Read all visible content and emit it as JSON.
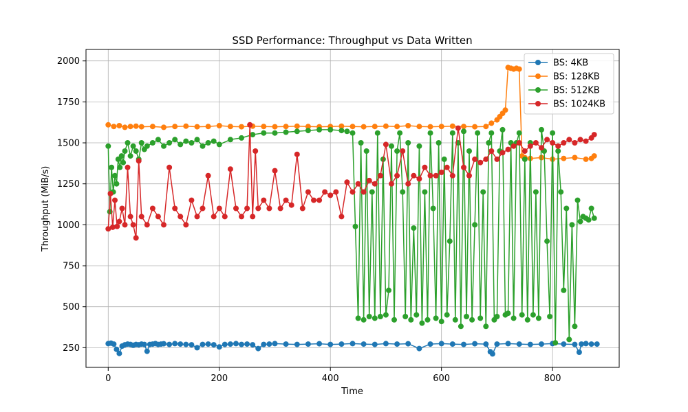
{
  "chart_data": {
    "type": "line",
    "title": "SSD Performance: Throughput vs Data Written",
    "xlabel": "Time",
    "ylabel": "Throughput (MiB/s)",
    "xlim": [
      -40,
      920
    ],
    "ylim": [
      130,
      2070
    ],
    "xticks": [
      0,
      200,
      400,
      600,
      800
    ],
    "yticks": [
      250,
      500,
      750,
      1000,
      1250,
      1500,
      1750,
      2000
    ],
    "grid": true,
    "legend_position": "upper-right",
    "marker": "circle",
    "series": [
      {
        "name": "BS: 4KB",
        "color": "#1f77b4",
        "x": [
          0,
          5,
          10,
          15,
          20,
          25,
          30,
          35,
          40,
          45,
          50,
          55,
          60,
          65,
          70,
          75,
          80,
          85,
          90,
          95,
          100,
          110,
          120,
          130,
          140,
          150,
          160,
          170,
          180,
          190,
          200,
          210,
          220,
          230,
          240,
          250,
          260,
          270,
          280,
          290,
          300,
          320,
          340,
          360,
          380,
          400,
          420,
          440,
          460,
          480,
          500,
          520,
          540,
          560,
          580,
          600,
          620,
          640,
          660,
          680,
          688,
          692,
          700,
          720,
          740,
          760,
          780,
          800,
          820,
          840,
          848,
          852,
          860,
          870,
          880
        ],
        "y": [
          275,
          278,
          272,
          240,
          215,
          260,
          268,
          272,
          270,
          265,
          270,
          268,
          272,
          270,
          228,
          270,
          272,
          275,
          270,
          272,
          274,
          270,
          275,
          272,
          270,
          268,
          250,
          270,
          272,
          268,
          255,
          270,
          272,
          275,
          270,
          272,
          268,
          245,
          270,
          272,
          275,
          272,
          270,
          272,
          274,
          270,
          272,
          275,
          272,
          270,
          275,
          272,
          274,
          245,
          272,
          275,
          272,
          270,
          274,
          272,
          225,
          212,
          272,
          275,
          272,
          270,
          272,
          275,
          272,
          270,
          222,
          272,
          275,
          272,
          272
        ]
      },
      {
        "name": "BS: 128KB",
        "color": "#ff7f0e",
        "x": [
          0,
          10,
          20,
          30,
          40,
          50,
          60,
          80,
          100,
          120,
          140,
          160,
          180,
          200,
          220,
          240,
          260,
          280,
          300,
          320,
          340,
          360,
          380,
          400,
          420,
          440,
          460,
          480,
          500,
          520,
          540,
          560,
          580,
          600,
          620,
          640,
          660,
          680,
          690,
          700,
          705,
          710,
          715,
          720,
          725,
          730,
          735,
          740,
          745,
          750,
          760,
          780,
          800,
          820,
          840,
          860,
          870,
          875
        ],
        "y": [
          1610,
          1600,
          1605,
          1595,
          1600,
          1602,
          1598,
          1600,
          1595,
          1600,
          1602,
          1598,
          1600,
          1605,
          1600,
          1598,
          1602,
          1600,
          1598,
          1600,
          1602,
          1600,
          1598,
          1600,
          1602,
          1600,
          1598,
          1600,
          1602,
          1600,
          1605,
          1600,
          1598,
          1600,
          1602,
          1600,
          1598,
          1600,
          1620,
          1640,
          1660,
          1680,
          1700,
          1960,
          1955,
          1950,
          1955,
          1950,
          1420,
          1410,
          1405,
          1410,
          1400,
          1405,
          1410,
          1400,
          1405,
          1420
        ]
      },
      {
        "name": "BS: 512KB",
        "color": "#2ca02c",
        "x": [
          0,
          3,
          6,
          9,
          12,
          15,
          18,
          21,
          24,
          27,
          30,
          35,
          40,
          45,
          50,
          55,
          60,
          65,
          70,
          80,
          90,
          100,
          110,
          120,
          130,
          140,
          150,
          160,
          170,
          180,
          190,
          200,
          220,
          240,
          260,
          280,
          300,
          320,
          340,
          360,
          380,
          400,
          420,
          430,
          440,
          445,
          450,
          455,
          460,
          465,
          470,
          475,
          480,
          485,
          490,
          495,
          500,
          505,
          510,
          515,
          520,
          525,
          530,
          535,
          540,
          545,
          550,
          555,
          560,
          565,
          570,
          575,
          580,
          585,
          590,
          595,
          600,
          605,
          610,
          615,
          620,
          625,
          630,
          635,
          640,
          645,
          650,
          655,
          660,
          665,
          670,
          675,
          680,
          685,
          690,
          695,
          700,
          705,
          710,
          715,
          720,
          725,
          730,
          735,
          740,
          745,
          750,
          755,
          760,
          765,
          770,
          775,
          780,
          785,
          790,
          795,
          800,
          805,
          810,
          815,
          820,
          825,
          830,
          835,
          840,
          845,
          850,
          855,
          860,
          865,
          870,
          875
        ],
        "y": [
          1480,
          1080,
          1350,
          1200,
          1300,
          1250,
          1400,
          1350,
          1420,
          1380,
          1450,
          1500,
          1420,
          1480,
          1450,
          1400,
          1500,
          1460,
          1480,
          1500,
          1520,
          1480,
          1500,
          1520,
          1490,
          1510,
          1500,
          1520,
          1480,
          1500,
          1510,
          1490,
          1520,
          1530,
          1550,
          1560,
          1560,
          1565,
          1570,
          1575,
          1580,
          1580,
          1575,
          1570,
          1560,
          990,
          430,
          1500,
          420,
          1450,
          440,
          1200,
          430,
          1560,
          440,
          1400,
          450,
          600,
          1480,
          420,
          1450,
          1560,
          1200,
          440,
          1500,
          420,
          980,
          450,
          1480,
          400,
          1200,
          420,
          1560,
          1100,
          430,
          1500,
          410,
          1400,
          450,
          900,
          1560,
          420,
          1500,
          380,
          1570,
          440,
          1450,
          420,
          1000,
          1560,
          430,
          1200,
          380,
          1500,
          1560,
          420,
          440,
          1450,
          1580,
          450,
          460,
          1500,
          430,
          1500,
          1560,
          450,
          1400,
          420,
          1500,
          450,
          1200,
          430,
          1580,
          1450,
          900,
          440,
          1560,
          280,
          1450,
          1200,
          600,
          1100,
          300,
          1000,
          380,
          1150,
          1020,
          1050,
          1040,
          1030,
          1100,
          1040
        ]
      },
      {
        "name": "BS: 1024KB",
        "color": "#d62728",
        "x": [
          0,
          4,
          8,
          12,
          16,
          20,
          25,
          30,
          35,
          40,
          45,
          50,
          55,
          60,
          70,
          80,
          90,
          100,
          110,
          120,
          130,
          140,
          150,
          160,
          170,
          180,
          190,
          200,
          210,
          220,
          230,
          240,
          250,
          255,
          260,
          265,
          270,
          280,
          290,
          300,
          310,
          320,
          330,
          340,
          350,
          360,
          370,
          380,
          390,
          400,
          410,
          420,
          430,
          440,
          450,
          460,
          470,
          480,
          490,
          500,
          510,
          520,
          530,
          540,
          550,
          560,
          570,
          580,
          590,
          600,
          610,
          620,
          630,
          640,
          650,
          660,
          670,
          680,
          690,
          700,
          710,
          720,
          730,
          740,
          750,
          760,
          770,
          780,
          790,
          800,
          810,
          820,
          830,
          840,
          850,
          860,
          870,
          875
        ],
        "y": [
          975,
          1190,
          985,
          1150,
          990,
          1020,
          1100,
          1000,
          1350,
          1050,
          1000,
          920,
          1390,
          1050,
          1000,
          1100,
          1050,
          1000,
          1350,
          1100,
          1050,
          1000,
          1150,
          1050,
          1100,
          1300,
          1050,
          1100,
          1050,
          1340,
          1100,
          1050,
          1100,
          1610,
          1050,
          1450,
          1100,
          1150,
          1100,
          1330,
          1100,
          1150,
          1120,
          1430,
          1100,
          1200,
          1150,
          1150,
          1200,
          1180,
          1200,
          1050,
          1260,
          1200,
          1250,
          1200,
          1270,
          1250,
          1300,
          1490,
          1250,
          1300,
          1450,
          1250,
          1300,
          1280,
          1350,
          1300,
          1300,
          1320,
          1350,
          1300,
          1590,
          1350,
          1300,
          1400,
          1380,
          1400,
          1450,
          1400,
          1440,
          1460,
          1480,
          1500,
          1450,
          1480,
          1500,
          1470,
          1520,
          1500,
          1480,
          1500,
          1520,
          1500,
          1520,
          1510,
          1530,
          1550
        ]
      }
    ]
  }
}
